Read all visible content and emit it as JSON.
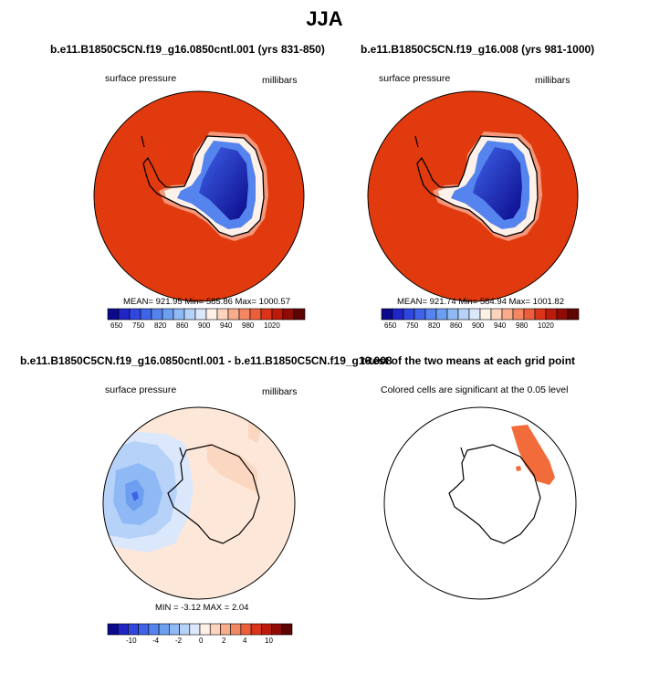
{
  "main_title": "JJA",
  "panels": {
    "top_left": {
      "title": "b.e11.B1850C5CN.f19_g16.0850cntl.001 (yrs 831-850)",
      "left_label": "surface pressure",
      "right_label": "millibars",
      "stats": "MEAN= 921.95  Min= 585.86  Max= 1000.57"
    },
    "top_right": {
      "title": "b.e11.B1850C5CN.f19_g16.008 (yrs 981-1000)",
      "left_label": "surface pressure",
      "right_label": "millibars",
      "stats": "MEAN= 921.74  Min= 584.94  Max= 1001.82"
    },
    "bottom_left": {
      "title": "b.e11.B1850C5CN.f19_g16.0850cntl.001 - b.e11.B1850C5CN.f19_g16.008",
      "left_label": "surface pressure",
      "right_label": "millibars",
      "stats": "MIN =  -3.12 MAX =   2.04"
    },
    "bottom_right": {
      "title": "t-test of the two means at each grid point",
      "subtitle": "Colored cells are significant at the 0.05 level"
    }
  },
  "chart_data": [
    {
      "type": "heatmap",
      "title": "b.e11.B1850C5CN.f19_g16.0850cntl.001 (yrs 831-850)",
      "variable": "surface pressure",
      "units": "millibars",
      "mean": 921.95,
      "min": 585.86,
      "max": 1000.57,
      "colorbar_ticks": [
        "650",
        "750",
        "820",
        "860",
        "900",
        "940",
        "980",
        "1020"
      ]
    },
    {
      "type": "heatmap",
      "title": "b.e11.B1850C5CN.f19_g16.008 (yrs 981-1000)",
      "variable": "surface pressure",
      "units": "millibars",
      "mean": 921.74,
      "min": 584.94,
      "max": 1001.82,
      "colorbar_ticks": [
        "650",
        "750",
        "820",
        "860",
        "900",
        "940",
        "980",
        "1020"
      ]
    },
    {
      "type": "heatmap",
      "title": "b.e11.B1850C5CN.f19_g16.0850cntl.001 - b.e11.B1850C5CN.f19_g16.008",
      "variable": "surface pressure",
      "units": "millibars",
      "min": -3.12,
      "max": 2.04,
      "colorbar_ticks": [
        "-10",
        "-4",
        "-2",
        "0",
        "2",
        "4",
        "10"
      ]
    },
    {
      "type": "heatmap",
      "title": "t-test of the two means at each grid point",
      "subtitle": "Colored cells are significant at the 0.05 level"
    }
  ],
  "colors": {
    "ocean_pressure": "#e13a0e",
    "land_edge": "#ffffff",
    "diff_background": "#fde7d8",
    "significant": "#f26b3a",
    "colorbar": [
      "#0b0a8c",
      "#1f25c7",
      "#2f46e0",
      "#3f63e8",
      "#5584ee",
      "#6d9ff1",
      "#8fb9f5",
      "#b6d2f8",
      "#dbe8fb",
      "#fef1e8",
      "#fcd3bc",
      "#f8ac8a",
      "#f38762",
      "#ed5e3b",
      "#db3418",
      "#bc1a0a",
      "#8f0b04",
      "#5e0403"
    ]
  }
}
